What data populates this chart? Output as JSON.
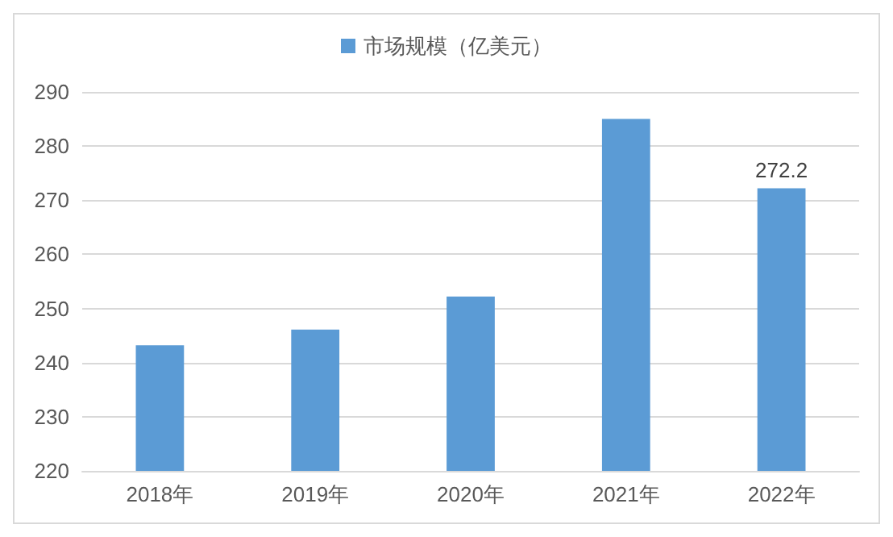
{
  "chart_data": {
    "type": "bar",
    "categories": [
      "2018年",
      "2019年",
      "2020年",
      "2021年",
      "2022年"
    ],
    "series": [
      {
        "name": "市场规模（亿美元）",
        "color": "#5b9bd5",
        "values": [
          243.2,
          246.1,
          252.2,
          285.0,
          272.2
        ],
        "value_labels": [
          null,
          null,
          null,
          null,
          "272.2"
        ]
      }
    ],
    "ylim": [
      220,
      290
    ],
    "yticks": [
      220,
      230,
      240,
      250,
      260,
      270,
      280,
      290
    ],
    "grid": "y",
    "legend": "top"
  }
}
